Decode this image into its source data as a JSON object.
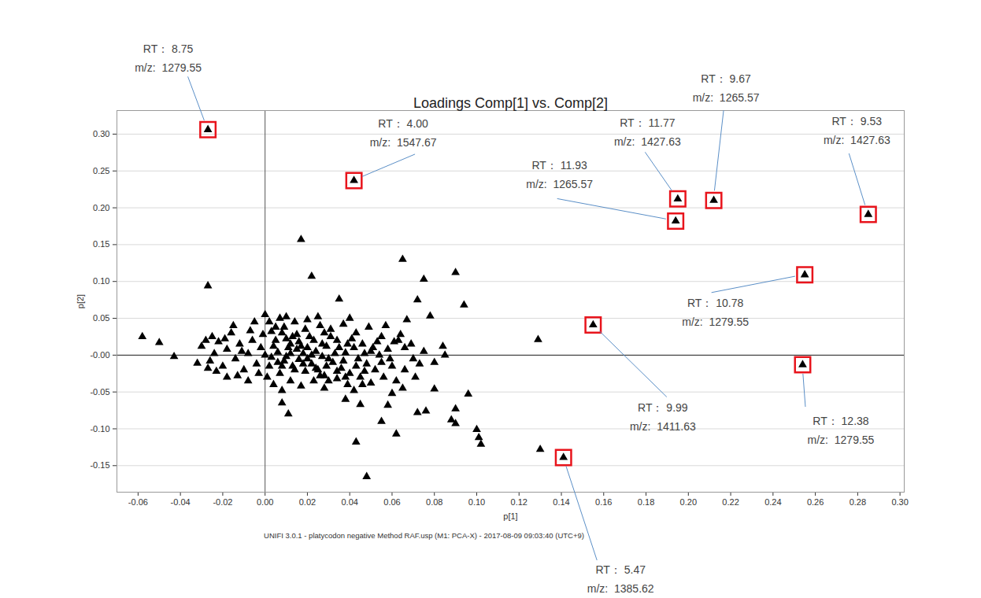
{
  "chart_data": {
    "type": "scatter",
    "title": "Loadings Comp[1] vs. Comp[2]",
    "caption": "UNIFI 3.0.1 - platycodon negative Method RAF.usp (M1: PCA-X) - 2017-08-09 09:03:40 (UTC+9)",
    "x_label": "p[1]",
    "y_label": "p[2]",
    "color": "#000000",
    "marker": "triangle",
    "grid": true,
    "xlim": [
      -0.07,
      0.302
    ],
    "ylim": [
      -0.186,
      0.332
    ],
    "xticks": [
      {
        "value": -0.06,
        "label": "-0.06"
      },
      {
        "value": -0.04,
        "label": "-0.04"
      },
      {
        "value": -0.02,
        "label": "-0.02"
      },
      {
        "value": 0,
        "label": "0.00"
      },
      {
        "value": 0.02,
        "label": "0.02"
      },
      {
        "value": 0.04,
        "label": "0.04"
      },
      {
        "value": 0.06,
        "label": "0.06"
      },
      {
        "value": 0.08,
        "label": "0.08"
      },
      {
        "value": 0.1,
        "label": "0.10"
      },
      {
        "value": 0.12,
        "label": "0.12"
      },
      {
        "value": 0.14,
        "label": "0.14"
      },
      {
        "value": 0.16,
        "label": "0.16"
      },
      {
        "value": 0.18,
        "label": "0.18"
      },
      {
        "value": 0.2,
        "label": "0.20"
      },
      {
        "value": 0.22,
        "label": "0.22"
      },
      {
        "value": 0.24,
        "label": "0.24"
      },
      {
        "value": 0.26,
        "label": "0.26"
      },
      {
        "value": 0.28,
        "label": "0.28"
      },
      {
        "value": 0.3,
        "label": "0.30"
      }
    ],
    "yticks": [
      {
        "value": -0.15,
        "label": "-0.15"
      },
      {
        "value": -0.1,
        "label": "-0.10"
      },
      {
        "value": -0.05,
        "label": "-0.05"
      },
      {
        "value": 0,
        "label": "-0.00"
      },
      {
        "value": 0.05,
        "label": "0.05"
      },
      {
        "value": 0.1,
        "label": "0.10"
      },
      {
        "value": 0.15,
        "label": "0.15"
      },
      {
        "value": 0.2,
        "label": "0.20"
      },
      {
        "value": 0.25,
        "label": "0.25"
      },
      {
        "value": 0.3,
        "label": "0.30"
      }
    ],
    "x": [
      0.0,
      0.002,
      0.005,
      0.008,
      0.01,
      0.012,
      0.015,
      0.018,
      0.02,
      0.022,
      0.025,
      0.028,
      0.03,
      0.003,
      0.006,
      0.009,
      0.011,
      0.013,
      0.016,
      0.019,
      0.021,
      0.024,
      0.027,
      0.029,
      0.032,
      0.034,
      0.036,
      0.038,
      0.04,
      0.042,
      0.044,
      0.046,
      0.048,
      0.05,
      0.052,
      0.054,
      0.056,
      0.058,
      0.06,
      -0.002,
      -0.004,
      -0.006,
      -0.008,
      -0.01,
      -0.012,
      -0.014,
      -0.016,
      -0.018,
      -0.02,
      -0.022,
      -0.024,
      -0.026,
      -0.028,
      -0.03,
      -0.025,
      -0.015,
      -0.005,
      0.007,
      0.014,
      0.02,
      0.026,
      0.031,
      0.037,
      0.043,
      0.049,
      0.055,
      0.061,
      0.066,
      0.07,
      0.066,
      0.062,
      0.057,
      0.001,
      0.004,
      0.007,
      0.012,
      0.017,
      0.023,
      0.028,
      0.034,
      0.039,
      0.045,
      0.05,
      -0.003,
      -0.008,
      -0.013,
      -0.018,
      -0.023,
      0.0,
      0.004,
      0.008,
      0.012,
      0.016,
      0.02,
      0.024,
      0.028,
      0.033,
      0.037,
      0.041,
      0.047,
      0.053,
      0.059,
      0.064,
      0.069,
      0.073,
      0.075,
      0.08,
      0.085,
      -0.001,
      0.003,
      0.009,
      0.015,
      0.019,
      0.023,
      0.027,
      0.031,
      0.035,
      0.039,
      0.043,
      0.047,
      0.051,
      0.055,
      0.002,
      0.006,
      0.01,
      0.014,
      0.018,
      0.022,
      0.026,
      0.03,
      0.034,
      0.038,
      0.042,
      0.046,
      0.025,
      0.01,
      0.04,
      0.065,
      0.071,
      0.005,
      0.013,
      -0.007,
      -0.011,
      -0.019,
      -0.027,
      0.017,
      0.029,
      0.017,
      0.022,
      0.065,
      0.09,
      0.075,
      0.094,
      0.072,
      0.035,
      0.067,
      0.129,
      -0.027,
      -0.058,
      -0.05,
      -0.043,
      -0.032,
      0.048,
      0.043,
      0.13,
      0.1,
      0.101,
      0.102,
      0.096,
      0.09,
      0.088,
      0.09,
      0.076,
      0.072,
      0.062,
      0.055,
      0.045,
      0.058,
      0.08,
      0.038,
      0.008,
      0.011,
      0.06,
      0.008,
      0.063,
      0.078,
      0.084,
      -0.027,
      0.042,
      0.195,
      0.212,
      0.194,
      0.285,
      0.255,
      0.155,
      0.254,
      0.141
    ],
    "values": [
      0.055,
      0.045,
      0.038,
      0.03,
      0.022,
      0.015,
      0.008,
      0.002,
      -0.005,
      -0.012,
      -0.02,
      -0.028,
      -0.035,
      -0.003,
      0.004,
      -0.008,
      0.01,
      -0.015,
      0.018,
      -0.022,
      0.025,
      0.005,
      -0.002,
      0.012,
      -0.01,
      0.02,
      -0.018,
      0.003,
      -0.025,
      0.01,
      -0.005,
      0.015,
      -0.012,
      0.005,
      -0.02,
      0.0,
      -0.03,
      0.008,
      -0.015,
      0.01,
      -0.012,
      0.02,
      0.002,
      -0.02,
      0.015,
      -0.005,
      0.03,
      0.008,
      -0.015,
      0.018,
      0.002,
      -0.008,
      0.02,
      0.012,
      0.025,
      0.04,
      0.045,
      0.05,
      0.045,
      0.048,
      0.04,
      0.035,
      0.042,
      0.03,
      0.038,
      0.025,
      0.018,
      0.01,
      -0.005,
      -0.02,
      -0.035,
      0.04,
      -0.03,
      -0.04,
      -0.025,
      -0.035,
      -0.042,
      -0.035,
      -0.045,
      -0.032,
      -0.04,
      -0.03,
      -0.038,
      -0.025,
      -0.035,
      -0.028,
      -0.03,
      -0.022,
      0.0,
      0.012,
      -0.015,
      0.002,
      -0.006,
      0.01,
      -0.018,
      0.03,
      0.002,
      -0.008,
      0.022,
      -0.022,
      0.018,
      -0.005,
      0.028,
      0.015,
      -0.012,
      0.005,
      -0.01,
      0.0,
      0.028,
      0.032,
      0.038,
      0.028,
      0.035,
      0.02,
      0.015,
      0.025,
      0.01,
      0.015,
      -0.015,
      0.002,
      0.01,
      -0.01,
      -0.015,
      -0.01,
      -0.002,
      -0.02,
      -0.012,
      0.0,
      -0.028,
      -0.005,
      -0.022,
      -0.03,
      -0.048,
      -0.04,
      0.052,
      0.052,
      0.05,
      -0.045,
      -0.03,
      0.02,
      0.025,
      0.033,
      0.005,
      0.022,
      -0.018,
      0.012,
      -0.015,
      0.157,
      0.107,
      0.13,
      0.112,
      0.103,
      0.068,
      0.075,
      0.076,
      0.048,
      0.021,
      0.094,
      0.025,
      0.017,
      -0.002,
      -0.011,
      -0.165,
      -0.118,
      -0.128,
      -0.101,
      -0.112,
      -0.121,
      -0.053,
      -0.073,
      -0.088,
      -0.093,
      -0.076,
      -0.078,
      -0.107,
      -0.09,
      -0.067,
      -0.068,
      -0.046,
      -0.06,
      -0.065,
      -0.08,
      -0.052,
      -0.048,
      0.02,
      0.053,
      0.012,
      0.306,
      0.237,
      0.212,
      0.21,
      0.182,
      0.191,
      0.109,
      0.041,
      -0.013,
      -0.139
    ],
    "annotations": [
      {
        "x": -0.027,
        "y": 0.306,
        "lines": [
          "RT： 8.75",
          "m/z:  1279.55"
        ]
      },
      {
        "x": 0.042,
        "y": 0.237,
        "lines": [
          "RT： 4.00",
          "m/z:  1547.67"
        ]
      },
      {
        "x": 0.195,
        "y": 0.212,
        "lines": [
          "RT： 11.77",
          "m/z:  1427.63"
        ]
      },
      {
        "x": 0.212,
        "y": 0.21,
        "lines": [
          "RT： 9.67",
          "m/z:  1265.57"
        ]
      },
      {
        "x": 0.194,
        "y": 0.182,
        "lines": [
          "RT： 11.93",
          "m/z:  1265.57"
        ]
      },
      {
        "x": 0.285,
        "y": 0.191,
        "lines": [
          "RT： 9.53",
          "m/z:  1427.63"
        ]
      },
      {
        "x": 0.255,
        "y": 0.109,
        "lines": [
          "RT： 10.78",
          "m/z:  1279.55"
        ]
      },
      {
        "x": 0.155,
        "y": 0.041,
        "lines": [
          "RT： 9.99",
          "m/z:  1411.63"
        ]
      },
      {
        "x": 0.254,
        "y": -0.013,
        "lines": [
          "RT： 12.38",
          "m/z:  1279.55"
        ]
      },
      {
        "x": 0.141,
        "y": -0.139,
        "lines": [
          "RT： 5.47",
          "m/z:  1385.62"
        ]
      }
    ]
  }
}
